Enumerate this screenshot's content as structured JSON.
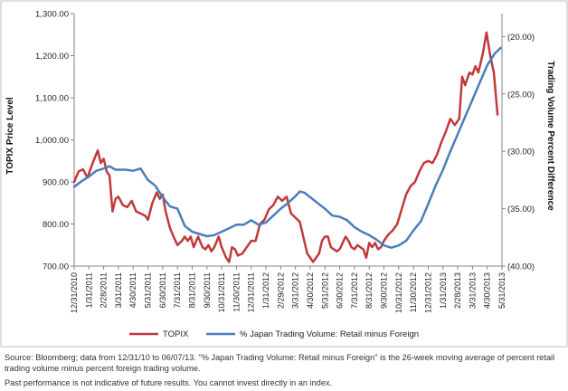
{
  "chart_data": {
    "type": "line",
    "y_left": {
      "label": "TOPIX Price Level",
      "range": [
        700,
        1300
      ],
      "ticks": [
        "700.00",
        "800.00",
        "900.00",
        "1,000.00",
        "1,100.00",
        "1,200.00",
        "1,300.00"
      ]
    },
    "y_right": {
      "label": "Trading Volume Percent Difference",
      "range": [
        -40,
        -18
      ],
      "ticks": [
        "(20.00)",
        "(25.00)",
        "(30.00)",
        "(35.00)",
        "(40.00)"
      ]
    },
    "x_ticks": [
      "12/31/2010",
      "1/31/2011",
      "2/28/2011",
      "3/31/2011",
      "4/30/2011",
      "5/31/2011",
      "6/30/2011",
      "7/31/2011",
      "8/31/2011",
      "9/30/2011",
      "10/31/2011",
      "11/30/2011",
      "12/31/2011",
      "1/31/2012",
      "2/29/2012",
      "3/31/2012",
      "4/30/2012",
      "5/31/2012",
      "6/30/2012",
      "7/31/2012",
      "8/31/2012",
      "9/30/2012",
      "10/31/2012",
      "11/30/2012",
      "12/31/2012",
      "1/31/2013",
      "2/28/2013",
      "3/31/2013",
      "4/30/2013",
      "5/31/2013"
    ],
    "series": [
      {
        "name": "TOPIX",
        "color": "#c0393b",
        "axis": "left",
        "points": [
          [
            0.0,
            900
          ],
          [
            0.3,
            925
          ],
          [
            0.6,
            930
          ],
          [
            0.9,
            910
          ],
          [
            1.2,
            940
          ],
          [
            1.6,
            975
          ],
          [
            1.8,
            945
          ],
          [
            2.0,
            955
          ],
          [
            2.2,
            925
          ],
          [
            2.4,
            915
          ],
          [
            2.6,
            830
          ],
          [
            2.8,
            860
          ],
          [
            3.0,
            865
          ],
          [
            3.3,
            845
          ],
          [
            3.6,
            840
          ],
          [
            3.9,
            855
          ],
          [
            4.2,
            830
          ],
          [
            4.5,
            825
          ],
          [
            4.8,
            820
          ],
          [
            5.0,
            810
          ],
          [
            5.3,
            850
          ],
          [
            5.6,
            875
          ],
          [
            5.8,
            860
          ],
          [
            6.0,
            870
          ],
          [
            6.2,
            830
          ],
          [
            6.5,
            790
          ],
          [
            6.8,
            765
          ],
          [
            7.0,
            750
          ],
          [
            7.3,
            760
          ],
          [
            7.5,
            770
          ],
          [
            7.7,
            760
          ],
          [
            7.9,
            770
          ],
          [
            8.1,
            745
          ],
          [
            8.4,
            770
          ],
          [
            8.7,
            745
          ],
          [
            8.9,
            740
          ],
          [
            9.1,
            750
          ],
          [
            9.3,
            735
          ],
          [
            9.5,
            745
          ],
          [
            9.8,
            770
          ],
          [
            10.0,
            745
          ],
          [
            10.3,
            720
          ],
          [
            10.5,
            710
          ],
          [
            10.7,
            745
          ],
          [
            10.9,
            740
          ],
          [
            11.1,
            725
          ],
          [
            11.4,
            730
          ],
          [
            11.7,
            745
          ],
          [
            12.0,
            760
          ],
          [
            12.3,
            760
          ],
          [
            12.6,
            800
          ],
          [
            12.9,
            810
          ],
          [
            13.2,
            835
          ],
          [
            13.5,
            845
          ],
          [
            13.8,
            865
          ],
          [
            14.1,
            855
          ],
          [
            14.4,
            865
          ],
          [
            14.7,
            825
          ],
          [
            15.0,
            815
          ],
          [
            15.3,
            805
          ],
          [
            15.6,
            760
          ],
          [
            15.8,
            730
          ],
          [
            16.0,
            720
          ],
          [
            16.2,
            710
          ],
          [
            16.4,
            720
          ],
          [
            16.6,
            730
          ],
          [
            16.8,
            760
          ],
          [
            17.0,
            770
          ],
          [
            17.2,
            770
          ],
          [
            17.4,
            745
          ],
          [
            17.6,
            740
          ],
          [
            17.8,
            735
          ],
          [
            18.0,
            740
          ],
          [
            18.2,
            755
          ],
          [
            18.4,
            770
          ],
          [
            18.6,
            760
          ],
          [
            18.8,
            745
          ],
          [
            19.0,
            740
          ],
          [
            19.2,
            750
          ],
          [
            19.4,
            745
          ],
          [
            19.6,
            740
          ],
          [
            19.8,
            720
          ],
          [
            20.0,
            755
          ],
          [
            20.2,
            745
          ],
          [
            20.4,
            755
          ],
          [
            20.6,
            740
          ],
          [
            20.8,
            745
          ],
          [
            21.0,
            760
          ],
          [
            21.3,
            775
          ],
          [
            21.6,
            785
          ],
          [
            21.9,
            800
          ],
          [
            22.2,
            835
          ],
          [
            22.5,
            870
          ],
          [
            22.8,
            890
          ],
          [
            23.1,
            900
          ],
          [
            23.4,
            925
          ],
          [
            23.7,
            945
          ],
          [
            24.0,
            950
          ],
          [
            24.3,
            945
          ],
          [
            24.6,
            965
          ],
          [
            24.9,
            995
          ],
          [
            25.2,
            1020
          ],
          [
            25.5,
            1050
          ],
          [
            25.8,
            1035
          ],
          [
            26.1,
            1050
          ],
          [
            26.3,
            1150
          ],
          [
            26.5,
            1130
          ],
          [
            26.8,
            1160
          ],
          [
            27.0,
            1155
          ],
          [
            27.2,
            1175
          ],
          [
            27.4,
            1160
          ],
          [
            27.7,
            1205
          ],
          [
            27.95,
            1255
          ],
          [
            28.2,
            1200
          ],
          [
            28.45,
            1160
          ],
          [
            28.7,
            1060
          ]
        ]
      },
      {
        "name": "% Japan Trading Volume:  Retail minus Foreign",
        "color": "#4a7ebb",
        "axis": "right",
        "points": [
          [
            0.0,
            -33.1
          ],
          [
            0.5,
            -32.6
          ],
          [
            1.0,
            -32.2
          ],
          [
            1.5,
            -31.7
          ],
          [
            2.0,
            -31.5
          ],
          [
            2.4,
            -31.3
          ],
          [
            2.8,
            -31.6
          ],
          [
            3.5,
            -31.6
          ],
          [
            4.0,
            -31.7
          ],
          [
            4.5,
            -31.5
          ],
          [
            5.0,
            -32.5
          ],
          [
            5.5,
            -33.0
          ],
          [
            6.0,
            -34.0
          ],
          [
            6.5,
            -34.8
          ],
          [
            7.0,
            -35.0
          ],
          [
            7.5,
            -36.5
          ],
          [
            8.0,
            -37.0
          ],
          [
            8.5,
            -37.2
          ],
          [
            9.0,
            -37.4
          ],
          [
            9.5,
            -37.3
          ],
          [
            10.0,
            -37.0
          ],
          [
            10.5,
            -36.7
          ],
          [
            11.0,
            -36.4
          ],
          [
            11.5,
            -36.4
          ],
          [
            12.0,
            -36.0
          ],
          [
            12.5,
            -36.4
          ],
          [
            13.0,
            -36.2
          ],
          [
            13.5,
            -35.6
          ],
          [
            14.0,
            -35.0
          ],
          [
            14.5,
            -34.5
          ],
          [
            15.0,
            -33.9
          ],
          [
            15.3,
            -33.5
          ],
          [
            15.6,
            -33.6
          ],
          [
            16.0,
            -34.0
          ],
          [
            16.5,
            -34.5
          ],
          [
            17.0,
            -35.0
          ],
          [
            17.5,
            -35.6
          ],
          [
            18.0,
            -35.7
          ],
          [
            18.5,
            -36.0
          ],
          [
            19.0,
            -36.6
          ],
          [
            19.5,
            -37.0
          ],
          [
            20.0,
            -37.3
          ],
          [
            20.5,
            -37.7
          ],
          [
            21.0,
            -38.2
          ],
          [
            21.5,
            -38.4
          ],
          [
            22.0,
            -38.2
          ],
          [
            22.5,
            -37.8
          ],
          [
            23.0,
            -36.9
          ],
          [
            23.5,
            -36.1
          ],
          [
            24.0,
            -34.6
          ],
          [
            24.5,
            -33.0
          ],
          [
            25.0,
            -31.6
          ],
          [
            25.5,
            -30.0
          ],
          [
            26.0,
            -28.5
          ],
          [
            26.5,
            -27.0
          ],
          [
            27.0,
            -25.5
          ],
          [
            27.5,
            -24.0
          ],
          [
            28.0,
            -22.5
          ],
          [
            28.5,
            -21.5
          ],
          [
            28.9,
            -21.0
          ]
        ]
      }
    ],
    "legend": {
      "position": "bottom"
    },
    "grid": false
  },
  "notes": {
    "source": "Source: Bloomberg; data from 12/31/10 to 06/07/13. \"% Japan Trading Volume: Retail minus Foreign\" is the 26-week moving average of percent retail trading volume minus percent foreign trading volume.",
    "disclaimer": "Past performance is not indicative of future results. You cannot invest directly in an index."
  }
}
